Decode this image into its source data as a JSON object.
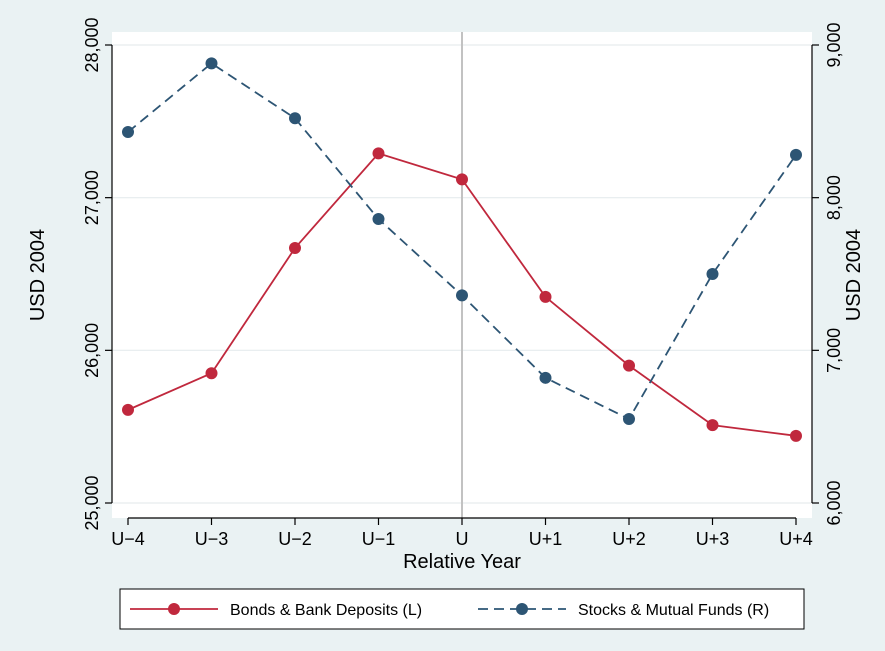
{
  "chart_data": {
    "type": "line",
    "title": "",
    "xlabel": "Relative Year",
    "ylabel_left": "USD 2004",
    "ylabel_right": "USD 2004",
    "categories": [
      "U−4",
      "U−3",
      "U−2",
      "U−1",
      "U",
      "U+1",
      "U+2",
      "U+3",
      "U+4"
    ],
    "y_left": {
      "range": [
        25000,
        28000
      ],
      "ticks": [
        25000,
        26000,
        27000,
        28000
      ],
      "tick_labels": [
        "25,000",
        "26,000",
        "27,000",
        "28,000"
      ]
    },
    "y_right": {
      "range": [
        6000,
        9000
      ],
      "ticks": [
        6000,
        7000,
        8000,
        9000
      ],
      "tick_labels": [
        "6,000",
        "7,000",
        "8,000",
        "9,000"
      ]
    },
    "reference_line_category": "U",
    "grid": true,
    "legend_position": "bottom",
    "series": [
      {
        "name": "Bonds & Bank Deposits (L)",
        "axis": "left",
        "style": "solid",
        "color": "#c0283d",
        "values": [
          25610,
          25850,
          26670,
          27290,
          27120,
          26350,
          25900,
          25510,
          25440
        ]
      },
      {
        "name": "Stocks & Mutual Funds (R)",
        "axis": "right",
        "style": "dashed",
        "color": "#2d5574",
        "values": [
          8430,
          8880,
          8520,
          7860,
          7360,
          6820,
          6550,
          7500,
          8280
        ]
      }
    ]
  }
}
